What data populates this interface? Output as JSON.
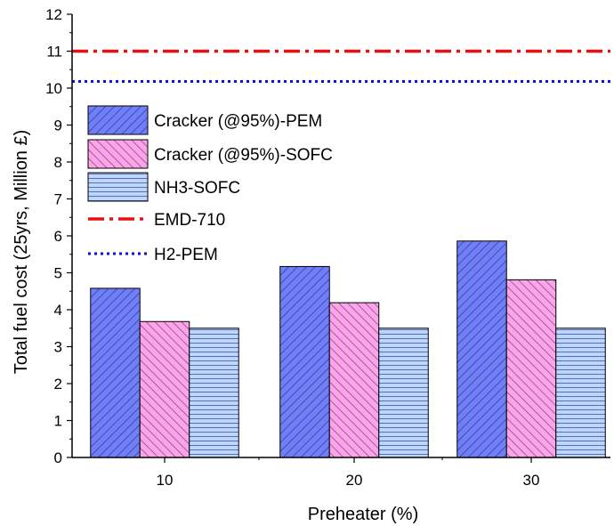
{
  "chart_data": {
    "type": "bar",
    "xlabel": "Preheater (%)",
    "ylabel": "Total fuel cost (25yrs, Million £)",
    "ylim": [
      0,
      12
    ],
    "yticks": [
      0,
      1,
      2,
      3,
      4,
      5,
      6,
      7,
      8,
      9,
      10,
      11,
      12
    ],
    "categories": [
      "10",
      "20",
      "30"
    ],
    "series": [
      {
        "name": "Cracker (@95%)-PEM",
        "values": [
          4.58,
          5.17,
          5.86
        ],
        "color": "#6f7ff5",
        "hatch": "#3c3ca8"
      },
      {
        "name": "Cracker (@95%)-SOFC",
        "values": [
          3.68,
          4.19,
          4.81
        ],
        "color": "#f7a8e3",
        "hatch": "#b02fb8"
      },
      {
        "name": "NH3-SOFC",
        "values": [
          3.5,
          3.5,
          3.5
        ],
        "color": "#bcd7fb",
        "hatch": "#5b6fb8"
      }
    ],
    "reference_lines": [
      {
        "name": "EMD-710",
        "value": 11.0,
        "color": "#e81010",
        "style": "dash-dot"
      },
      {
        "name": "H2-PEM",
        "value": 10.18,
        "color": "#1010d8",
        "style": "dotted"
      }
    ],
    "legend_position": "top-left",
    "grid": false
  }
}
